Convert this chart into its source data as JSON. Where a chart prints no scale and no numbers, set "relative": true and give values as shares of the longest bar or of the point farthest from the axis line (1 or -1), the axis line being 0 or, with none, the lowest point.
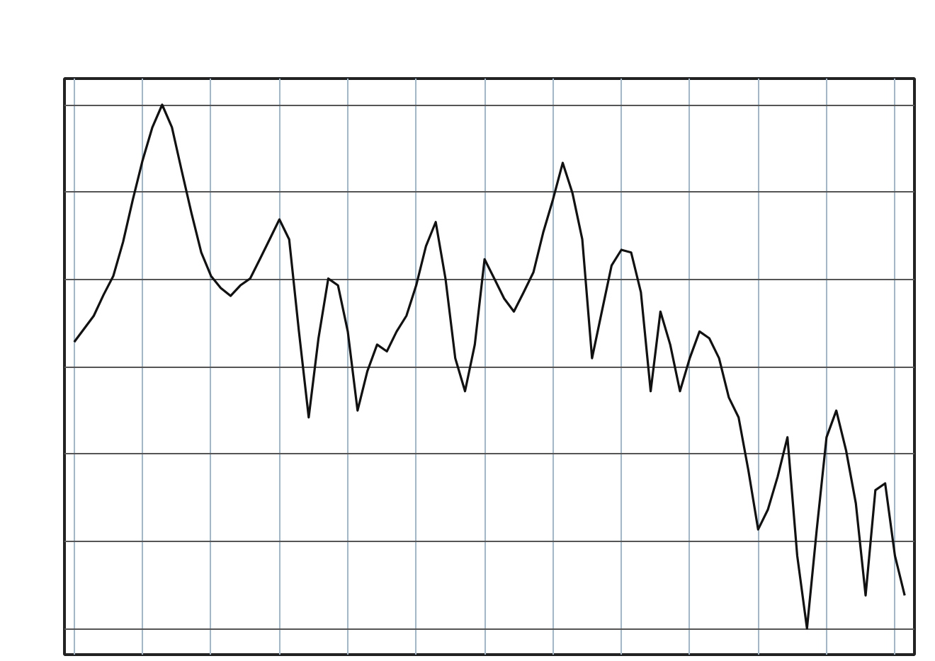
{
  "chart_data": {
    "type": "line",
    "relative": true,
    "grid": true,
    "line_style": "solid",
    "marker": "none",
    "categories": [
      null,
      null,
      null,
      null,
      null,
      null,
      null,
      null,
      null,
      null,
      null,
      null,
      null,
      null,
      null,
      null,
      null,
      null,
      null,
      null,
      null,
      null,
      null,
      null,
      null,
      null,
      null,
      null,
      null,
      null,
      null,
      null,
      null,
      null,
      null,
      null,
      null,
      null,
      null,
      null,
      null,
      null,
      null,
      null,
      null,
      null,
      null,
      null,
      null,
      null,
      null,
      null,
      null,
      null,
      null,
      null,
      null,
      null,
      null,
      null,
      null,
      null,
      null,
      null,
      null,
      null,
      null,
      null,
      null,
      null,
      null,
      null,
      null,
      null,
      null,
      null,
      null,
      null,
      null,
      null,
      null,
      null,
      null,
      null,
      null,
      null
    ],
    "series": [
      {
        "color": "#111111",
        "values": [
          0.547,
          0.572,
          0.597,
          0.637,
          0.673,
          0.738,
          0.819,
          0.894,
          0.957,
          1,
          0.957,
          0.874,
          0.793,
          0.718,
          0.673,
          0.65,
          0.635,
          0.655,
          0.668,
          0.705,
          0.743,
          0.781,
          0.743,
          0.567,
          0.403,
          0.554,
          0.668,
          0.655,
          0.567,
          0.416,
          0.491,
          0.542,
          0.529,
          0.567,
          0.597,
          0.655,
          0.73,
          0.776,
          0.668,
          0.516,
          0.453,
          0.542,
          0.705,
          0.668,
          0.63,
          0.605,
          0.642,
          0.68,
          0.756,
          0.819,
          0.889,
          0.831,
          0.743,
          0.516,
          0.605,
          0.693,
          0.723,
          0.718,
          0.642,
          0.453,
          0.605,
          0.542,
          0.453,
          0.516,
          0.567,
          0.554,
          0.516,
          0.441,
          0.403,
          0.302,
          0.189,
          0.227,
          0.29,
          0.365,
          0.139,
          0,
          0.189,
          0.365,
          0.416,
          0.34,
          0.239,
          0.063,
          0.264,
          0.277,
          0.139,
          0.063
        ]
      }
    ]
  }
}
